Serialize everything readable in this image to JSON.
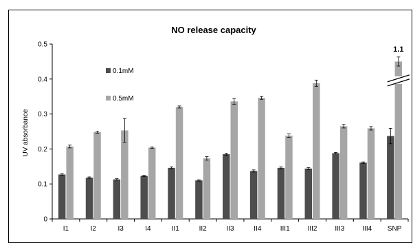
{
  "chart_data": {
    "type": "bar",
    "title": "NO release capacity",
    "xlabel": "",
    "ylabel": "UV absorbance",
    "ylim": [
      0,
      0.5
    ],
    "yticks": [
      "0",
      "0.1",
      "0.2",
      "0.3",
      "0.4",
      "0.5"
    ],
    "grid": false,
    "legend_position": "top-left",
    "categories": [
      "I1",
      "I2",
      "I3",
      "I4",
      "II1",
      "II2",
      "II3",
      "II4",
      "III1",
      "III2",
      "III3",
      "III4",
      "SNP"
    ],
    "series": [
      {
        "name": "0.1mM",
        "color": "#4d4d4d",
        "values": [
          0.127,
          0.118,
          0.113,
          0.123,
          0.146,
          0.11,
          0.185,
          0.137,
          0.146,
          0.144,
          0.188,
          0.161,
          0.237
        ],
        "errors": [
          0.002,
          0.002,
          0.002,
          0.002,
          0.003,
          0.002,
          0.003,
          0.003,
          0.003,
          0.003,
          0.002,
          0.002,
          0.022
        ]
      },
      {
        "name": "0.5mM",
        "color": "#a6a6a6",
        "values": [
          0.207,
          0.248,
          0.253,
          0.204,
          0.32,
          0.173,
          0.336,
          0.346,
          0.238,
          0.388,
          0.265,
          0.259,
          0.45
        ],
        "errors": [
          0.004,
          0.003,
          0.034,
          0.002,
          0.003,
          0.005,
          0.008,
          0.004,
          0.005,
          0.009,
          0.005,
          0.005,
          0.013
        ]
      }
    ],
    "axis_break": {
      "category": "SNP",
      "series": "0.5mM",
      "actual_value": "1.1"
    }
  }
}
